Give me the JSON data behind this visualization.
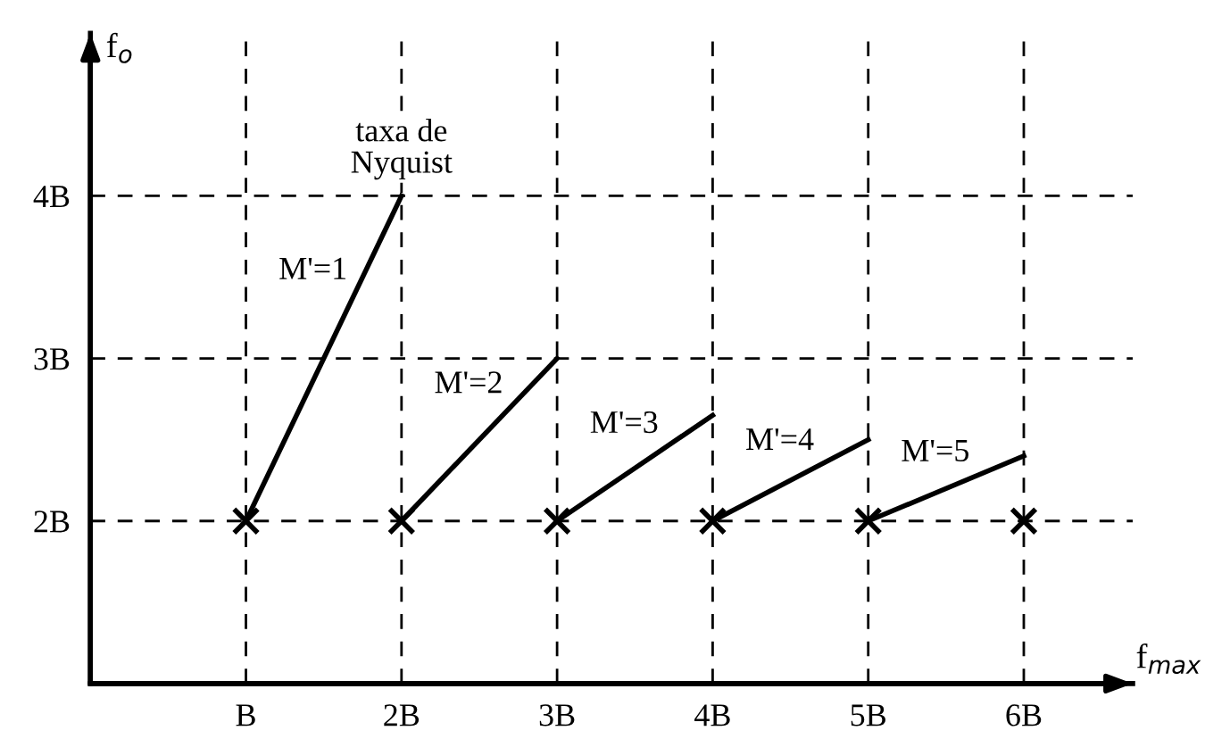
{
  "chart_data": {
    "type": "line",
    "xlabel": "f$_{max}$",
    "ylabel": "f$_{o}$",
    "xlim": [
      0,
      6.7
    ],
    "ylim": [
      1,
      5.0
    ],
    "xticks": [
      {
        "value": 1,
        "label": "B"
      },
      {
        "value": 2,
        "label": "2B"
      },
      {
        "value": 3,
        "label": "3B"
      },
      {
        "value": 4,
        "label": "4B"
      },
      {
        "value": 5,
        "label": "5B"
      },
      {
        "value": 6,
        "label": "6B"
      }
    ],
    "yticks": [
      {
        "value": 2,
        "label": "2B"
      },
      {
        "value": 3,
        "label": "3B"
      },
      {
        "value": 4,
        "label": "4B"
      }
    ],
    "grid": true,
    "line_style": "solid",
    "marker": "none",
    "series": [
      {
        "name": "M'=1",
        "color": "#000000",
        "x": [
          1,
          2
        ],
        "values": [
          2,
          4
        ]
      },
      {
        "name": "M'=2",
        "color": "#000000",
        "x": [
          2,
          3
        ],
        "values": [
          2,
          3
        ]
      },
      {
        "name": "M'=3",
        "color": "#000000",
        "x": [
          3,
          4
        ],
        "values": [
          2,
          2.65
        ]
      },
      {
        "name": "M'=4",
        "color": "#000000",
        "x": [
          4,
          5
        ],
        "values": [
          2,
          2.5
        ]
      },
      {
        "name": "M'=5",
        "color": "#000000",
        "x": [
          5,
          6
        ],
        "values": [
          2,
          2.4
        ]
      },
      {
        "type": "scatter",
        "marker": "cross",
        "color": "#000000",
        "x": [
          1,
          2,
          3,
          4,
          5,
          6
        ],
        "values": [
          2,
          2,
          2,
          2,
          2,
          2
        ]
      }
    ],
    "annotations": [
      {
        "text": "taxa de\nNyquist",
        "x": 2,
        "y": 4
      }
    ]
  }
}
